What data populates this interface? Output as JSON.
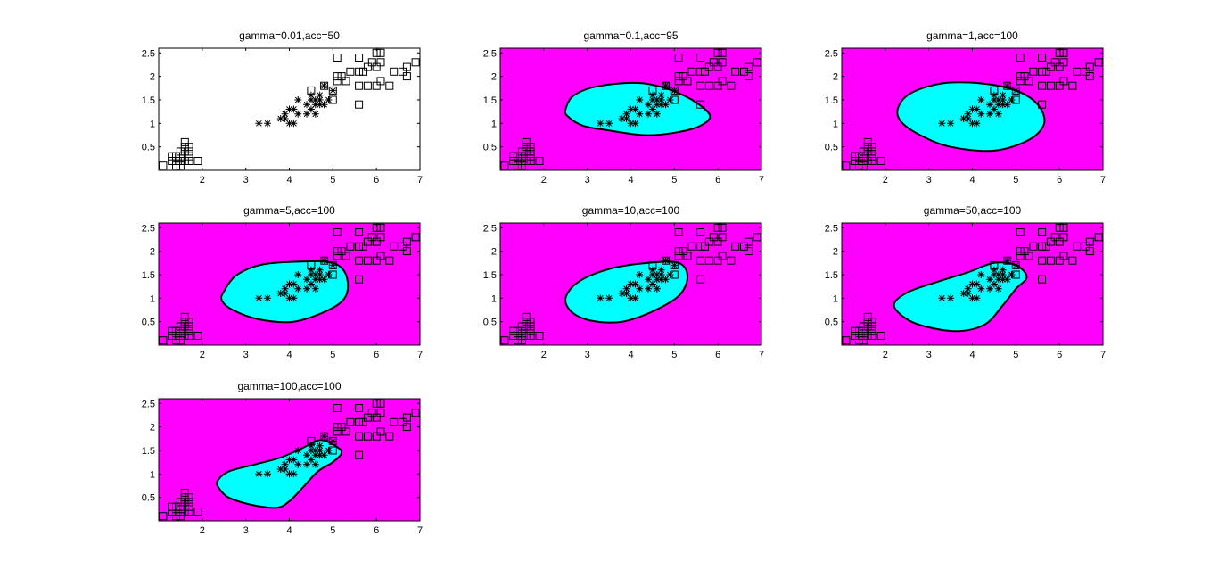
{
  "figure": {
    "region_color": "#00ffff",
    "background_color": "#ff00ff",
    "marker_stroke": "#000000"
  },
  "chart_data": [
    {
      "type": "scatter",
      "title": "gamma=0.01,acc=50",
      "gamma": 0.01,
      "acc": 50,
      "shaded": false,
      "xlim": [
        1,
        7
      ],
      "ylim": [
        0,
        2.6
      ],
      "xticks": [
        "2",
        "3",
        "4",
        "5",
        "6",
        "7"
      ],
      "yticks": [
        "0.5",
        "1",
        "1.5",
        "2",
        "2.5"
      ],
      "region": []
    },
    {
      "type": "scatter",
      "title": "gamma=0.1,acc=95",
      "gamma": 0.1,
      "acc": 95,
      "shaded": true,
      "xlim": [
        1,
        7
      ],
      "ylim": [
        0,
        2.6
      ],
      "xticks": [
        "2",
        "3",
        "4",
        "5",
        "6",
        "7"
      ],
      "yticks": [
        "0.5",
        "1",
        "1.5",
        "2",
        "2.5"
      ],
      "region": [
        [
          2.5,
          1.3
        ],
        [
          2.7,
          1.6
        ],
        [
          3.3,
          1.8
        ],
        [
          4.3,
          1.85
        ],
        [
          5.2,
          1.6
        ],
        [
          5.8,
          1.2
        ],
        [
          5.6,
          0.95
        ],
        [
          5.0,
          0.8
        ],
        [
          4.3,
          0.75
        ],
        [
          3.5,
          0.85
        ],
        [
          2.9,
          0.95
        ],
        [
          2.55,
          1.15
        ]
      ]
    },
    {
      "type": "scatter",
      "title": "gamma=1,acc=100",
      "gamma": 1,
      "acc": 100,
      "shaded": true,
      "xlim": [
        1,
        7
      ],
      "ylim": [
        0,
        2.6
      ],
      "xticks": [
        "2",
        "3",
        "4",
        "5",
        "6",
        "7"
      ],
      "yticks": [
        "0.5",
        "1",
        "1.5",
        "2",
        "2.5"
      ],
      "region": [
        [
          2.3,
          1.35
        ],
        [
          2.6,
          1.65
        ],
        [
          3.3,
          1.85
        ],
        [
          4.2,
          1.85
        ],
        [
          5.0,
          1.7
        ],
        [
          5.5,
          1.4
        ],
        [
          5.65,
          1.0
        ],
        [
          5.3,
          0.65
        ],
        [
          4.5,
          0.42
        ],
        [
          3.5,
          0.5
        ],
        [
          2.8,
          0.75
        ],
        [
          2.35,
          1.05
        ]
      ]
    },
    {
      "type": "scatter",
      "title": "gamma=5,acc=100",
      "gamma": 5,
      "acc": 100,
      "shaded": true,
      "xlim": [
        1,
        7
      ],
      "ylim": [
        0,
        2.6
      ],
      "xticks": [
        "2",
        "3",
        "4",
        "5",
        "6",
        "7"
      ],
      "yticks": [
        "0.5",
        "1",
        "1.5",
        "2",
        "2.5"
      ],
      "region": [
        [
          2.5,
          1.15
        ],
        [
          2.8,
          1.5
        ],
        [
          3.4,
          1.72
        ],
        [
          4.3,
          1.78
        ],
        [
          5.0,
          1.75
        ],
        [
          5.3,
          1.5
        ],
        [
          5.3,
          1.05
        ],
        [
          4.9,
          0.75
        ],
        [
          4.1,
          0.5
        ],
        [
          3.3,
          0.55
        ],
        [
          2.7,
          0.75
        ],
        [
          2.45,
          0.95
        ]
      ]
    },
    {
      "type": "scatter",
      "title": "gamma=10,acc=100",
      "gamma": 10,
      "acc": 100,
      "shaded": true,
      "xlim": [
        1,
        7
      ],
      "ylim": [
        0,
        2.6
      ],
      "xticks": [
        "2",
        "3",
        "4",
        "5",
        "6",
        "7"
      ],
      "yticks": [
        "0.5",
        "1",
        "1.5",
        "2",
        "2.5"
      ],
      "region": [
        [
          2.5,
          1.0
        ],
        [
          2.8,
          1.35
        ],
        [
          3.5,
          1.62
        ],
        [
          4.4,
          1.75
        ],
        [
          5.1,
          1.75
        ],
        [
          5.3,
          1.45
        ],
        [
          5.1,
          1.05
        ],
        [
          4.5,
          0.72
        ],
        [
          3.8,
          0.5
        ],
        [
          3.1,
          0.52
        ],
        [
          2.65,
          0.7
        ]
      ]
    },
    {
      "type": "scatter",
      "title": "gamma=50,acc=100",
      "gamma": 50,
      "acc": 100,
      "shaded": true,
      "xlim": [
        1,
        7
      ],
      "ylim": [
        0,
        2.6
      ],
      "xticks": [
        "2",
        "3",
        "4",
        "5",
        "6",
        "7"
      ],
      "yticks": [
        "0.5",
        "1",
        "1.5",
        "2",
        "2.5"
      ],
      "region": [
        [
          2.2,
          0.85
        ],
        [
          2.5,
          1.12
        ],
        [
          3.2,
          1.35
        ],
        [
          3.9,
          1.55
        ],
        [
          4.5,
          1.75
        ],
        [
          5.0,
          1.7
        ],
        [
          5.25,
          1.45
        ],
        [
          5.0,
          1.2
        ],
        [
          4.7,
          0.85
        ],
        [
          4.3,
          0.45
        ],
        [
          3.7,
          0.3
        ],
        [
          3.0,
          0.38
        ],
        [
          2.5,
          0.55
        ]
      ]
    },
    {
      "type": "scatter",
      "title": "gamma=100,acc=100",
      "gamma": 100,
      "acc": 100,
      "shaded": true,
      "xlim": [
        1,
        7
      ],
      "ylim": [
        0,
        2.6
      ],
      "xticks": [
        "2",
        "3",
        "4",
        "5",
        "6",
        "7"
      ],
      "yticks": [
        "0.5",
        "1",
        "1.5",
        "2",
        "2.5"
      ],
      "region": [
        [
          2.35,
          0.85
        ],
        [
          2.6,
          1.05
        ],
        [
          3.2,
          1.2
        ],
        [
          3.8,
          1.35
        ],
        [
          4.3,
          1.55
        ],
        [
          4.7,
          1.72
        ],
        [
          5.05,
          1.6
        ],
        [
          5.2,
          1.45
        ],
        [
          5.0,
          1.25
        ],
        [
          4.65,
          1.05
        ],
        [
          4.3,
          0.7
        ],
        [
          4.0,
          0.42
        ],
        [
          3.7,
          0.28
        ],
        [
          3.1,
          0.35
        ],
        [
          2.6,
          0.5
        ],
        [
          2.38,
          0.7
        ]
      ]
    }
  ],
  "points": {
    "squares": [
      [
        1.1,
        0.1
      ],
      [
        1.3,
        0.2
      ],
      [
        1.3,
        0.3
      ],
      [
        1.4,
        0.1
      ],
      [
        1.4,
        0.2
      ],
      [
        1.4,
        0.3
      ],
      [
        1.5,
        0.1
      ],
      [
        1.5,
        0.2
      ],
      [
        1.5,
        0.3
      ],
      [
        1.5,
        0.4
      ],
      [
        1.6,
        0.2
      ],
      [
        1.6,
        0.4
      ],
      [
        1.6,
        0.5
      ],
      [
        1.6,
        0.6
      ],
      [
        1.7,
        0.2
      ],
      [
        1.7,
        0.3
      ],
      [
        1.7,
        0.4
      ],
      [
        1.7,
        0.5
      ],
      [
        1.9,
        0.2
      ],
      [
        4.5,
        1.7
      ],
      [
        4.8,
        1.8
      ],
      [
        5.0,
        1.7
      ],
      [
        5.0,
        1.5
      ],
      [
        5.1,
        1.9
      ],
      [
        5.1,
        2.0
      ],
      [
        5.2,
        2.0
      ],
      [
        5.1,
        2.4
      ],
      [
        5.3,
        1.9
      ],
      [
        5.4,
        2.1
      ],
      [
        5.6,
        1.8
      ],
      [
        5.6,
        2.1
      ],
      [
        5.6,
        2.4
      ],
      [
        5.6,
        1.4
      ],
      [
        5.7,
        2.1
      ],
      [
        5.8,
        1.8
      ],
      [
        5.8,
        2.2
      ],
      [
        5.9,
        2.3
      ],
      [
        6.0,
        1.8
      ],
      [
        6.0,
        2.5
      ],
      [
        6.1,
        1.9
      ],
      [
        6.1,
        2.3
      ],
      [
        6.1,
        2.5
      ],
      [
        6.3,
        1.8
      ],
      [
        6.4,
        2.1
      ],
      [
        6.6,
        2.1
      ],
      [
        6.7,
        2.2
      ],
      [
        6.7,
        2.0
      ],
      [
        6.9,
        2.3
      ],
      [
        6.0,
        2.2
      ]
    ],
    "stars": [
      [
        3.3,
        1.0
      ],
      [
        3.5,
        1.0
      ],
      [
        3.8,
        1.1
      ],
      [
        3.9,
        1.2
      ],
      [
        3.9,
        1.1
      ],
      [
        4.0,
        1.0
      ],
      [
        4.0,
        1.3
      ],
      [
        4.1,
        1.3
      ],
      [
        4.1,
        1.0
      ],
      [
        4.2,
        1.2
      ],
      [
        4.2,
        1.5
      ],
      [
        4.4,
        1.2
      ],
      [
        4.4,
        1.4
      ],
      [
        4.5,
        1.5
      ],
      [
        4.5,
        1.6
      ],
      [
        4.5,
        1.3
      ],
      [
        4.6,
        1.4
      ],
      [
        4.6,
        1.5
      ],
      [
        4.6,
        1.2
      ],
      [
        4.7,
        1.4
      ],
      [
        4.7,
        1.5
      ],
      [
        4.7,
        1.6
      ],
      [
        4.8,
        1.4
      ],
      [
        4.8,
        1.8
      ],
      [
        4.9,
        1.5
      ],
      [
        5.0,
        1.7
      ]
    ]
  }
}
